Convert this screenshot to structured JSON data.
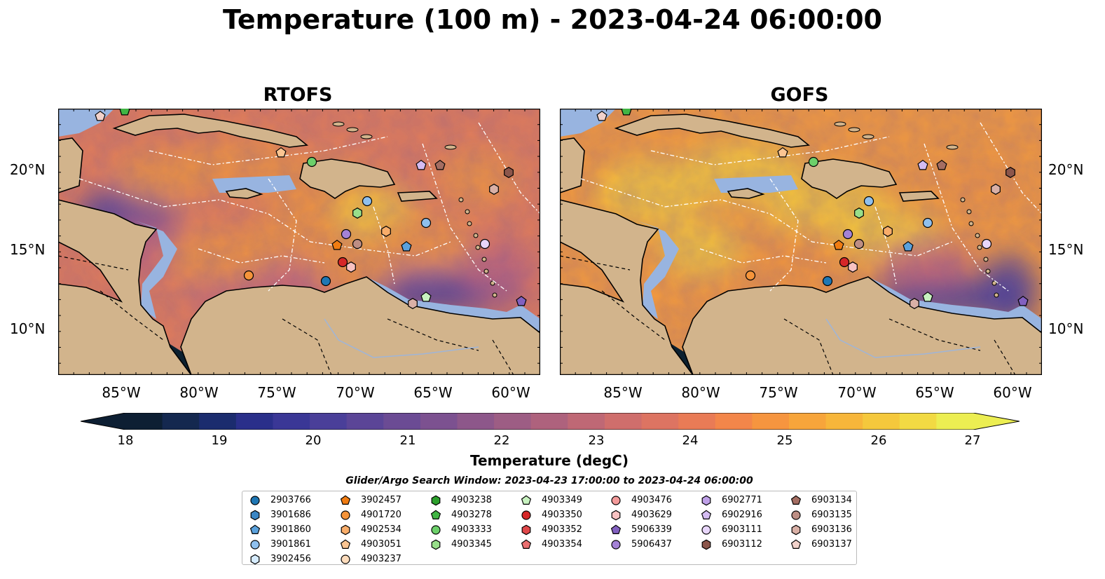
{
  "title": "Temperature (100 m) - 2023-04-24 06:00:00",
  "panels": [
    {
      "title": "RTOFS"
    },
    {
      "title": "GOFS"
    }
  ],
  "lat_labels": [
    "20°N",
    "15°N",
    "10°N"
  ],
  "lon_labels": [
    "85°W",
    "80°W",
    "75°W",
    "70°W",
    "65°W",
    "60°W"
  ],
  "colorbar": {
    "label": "Temperature (degC)",
    "ticks": [
      "18",
      "19",
      "20",
      "21",
      "22",
      "23",
      "24",
      "25",
      "26",
      "27"
    ],
    "colors": [
      "#0d1f33",
      "#14284f",
      "#1b2c6e",
      "#2a2f8a",
      "#3a3796",
      "#4a3f99",
      "#5b4597",
      "#6b4b94",
      "#7c5190",
      "#8d578a",
      "#9d5d84",
      "#ae627d",
      "#bf6875",
      "#cf6e6c",
      "#dd7462",
      "#e97b56",
      "#f3864a",
      "#f6953f",
      "#f7a53b",
      "#f7b63a",
      "#f5c83c",
      "#f2da43",
      "#ecee52"
    ]
  },
  "legend": {
    "title": "Glider/Argo Search Window: 2023-04-23 17:00:00 to 2023-04-24 06:00:00",
    "entries": [
      {
        "id": "2903766",
        "shape": "circle",
        "color": "#1f77b4"
      },
      {
        "id": "3901686",
        "shape": "hexagon",
        "color": "#3b86c4"
      },
      {
        "id": "3901860",
        "shape": "pentagon",
        "color": "#5aa1dc"
      },
      {
        "id": "3901861",
        "shape": "circle",
        "color": "#8fc0ee"
      },
      {
        "id": "3902456",
        "shape": "hexagon",
        "color": "#d6ecff"
      },
      {
        "id": "3902457",
        "shape": "pentagon",
        "color": "#f07c12"
      },
      {
        "id": "4901720",
        "shape": "circle",
        "color": "#f5943a"
      },
      {
        "id": "4902534",
        "shape": "hexagon",
        "color": "#f8ad6a"
      },
      {
        "id": "4903051",
        "shape": "pentagon",
        "color": "#fbc592"
      },
      {
        "id": "4903237",
        "shape": "circle",
        "color": "#fddcbc"
      },
      {
        "id": "4903238",
        "shape": "hexagon",
        "color": "#2ca02c"
      },
      {
        "id": "4903278",
        "shape": "pentagon",
        "color": "#41b544"
      },
      {
        "id": "4903333",
        "shape": "circle",
        "color": "#6cd06a"
      },
      {
        "id": "4903345",
        "shape": "hexagon",
        "color": "#98df8a"
      },
      {
        "id": "4903349",
        "shape": "pentagon",
        "color": "#c8f2c0"
      },
      {
        "id": "4903350",
        "shape": "circle",
        "color": "#d62728"
      },
      {
        "id": "4903352",
        "shape": "hexagon",
        "color": "#e0484a"
      },
      {
        "id": "4903354",
        "shape": "pentagon",
        "color": "#ea6f70"
      },
      {
        "id": "4903476",
        "shape": "circle",
        "color": "#f39a9a"
      },
      {
        "id": "4903629",
        "shape": "hexagon",
        "color": "#f8c2c2"
      },
      {
        "id": "5906339",
        "shape": "pentagon",
        "color": "#8260c0"
      },
      {
        "id": "5906437",
        "shape": "circle",
        "color": "#a482d6"
      },
      {
        "id": "6902771",
        "shape": "hexagon",
        "color": "#bfa0e8"
      },
      {
        "id": "6902916",
        "shape": "pentagon",
        "color": "#d4bcf2"
      },
      {
        "id": "6903111",
        "shape": "circle",
        "color": "#e8d6fb"
      },
      {
        "id": "6903112",
        "shape": "hexagon",
        "color": "#8c564b"
      },
      {
        "id": "6903134",
        "shape": "pentagon",
        "color": "#a46d62"
      },
      {
        "id": "6903135",
        "shape": "circle",
        "color": "#bd8e84"
      },
      {
        "id": "6903136",
        "shape": "hexagon",
        "color": "#d9b0a6"
      },
      {
        "id": "6903137",
        "shape": "pentagon",
        "color": "#f2d2cb"
      }
    ]
  },
  "colors": {
    "land": "#d2b48c",
    "shallow": "#98b4e0",
    "deep_pacific": "#0b2030",
    "ocean_warm": "#f0953e",
    "ocean_mid": "#c0647a",
    "ocean_cool": "#4a3f99",
    "ocean_hot": "#f5c83c"
  }
}
